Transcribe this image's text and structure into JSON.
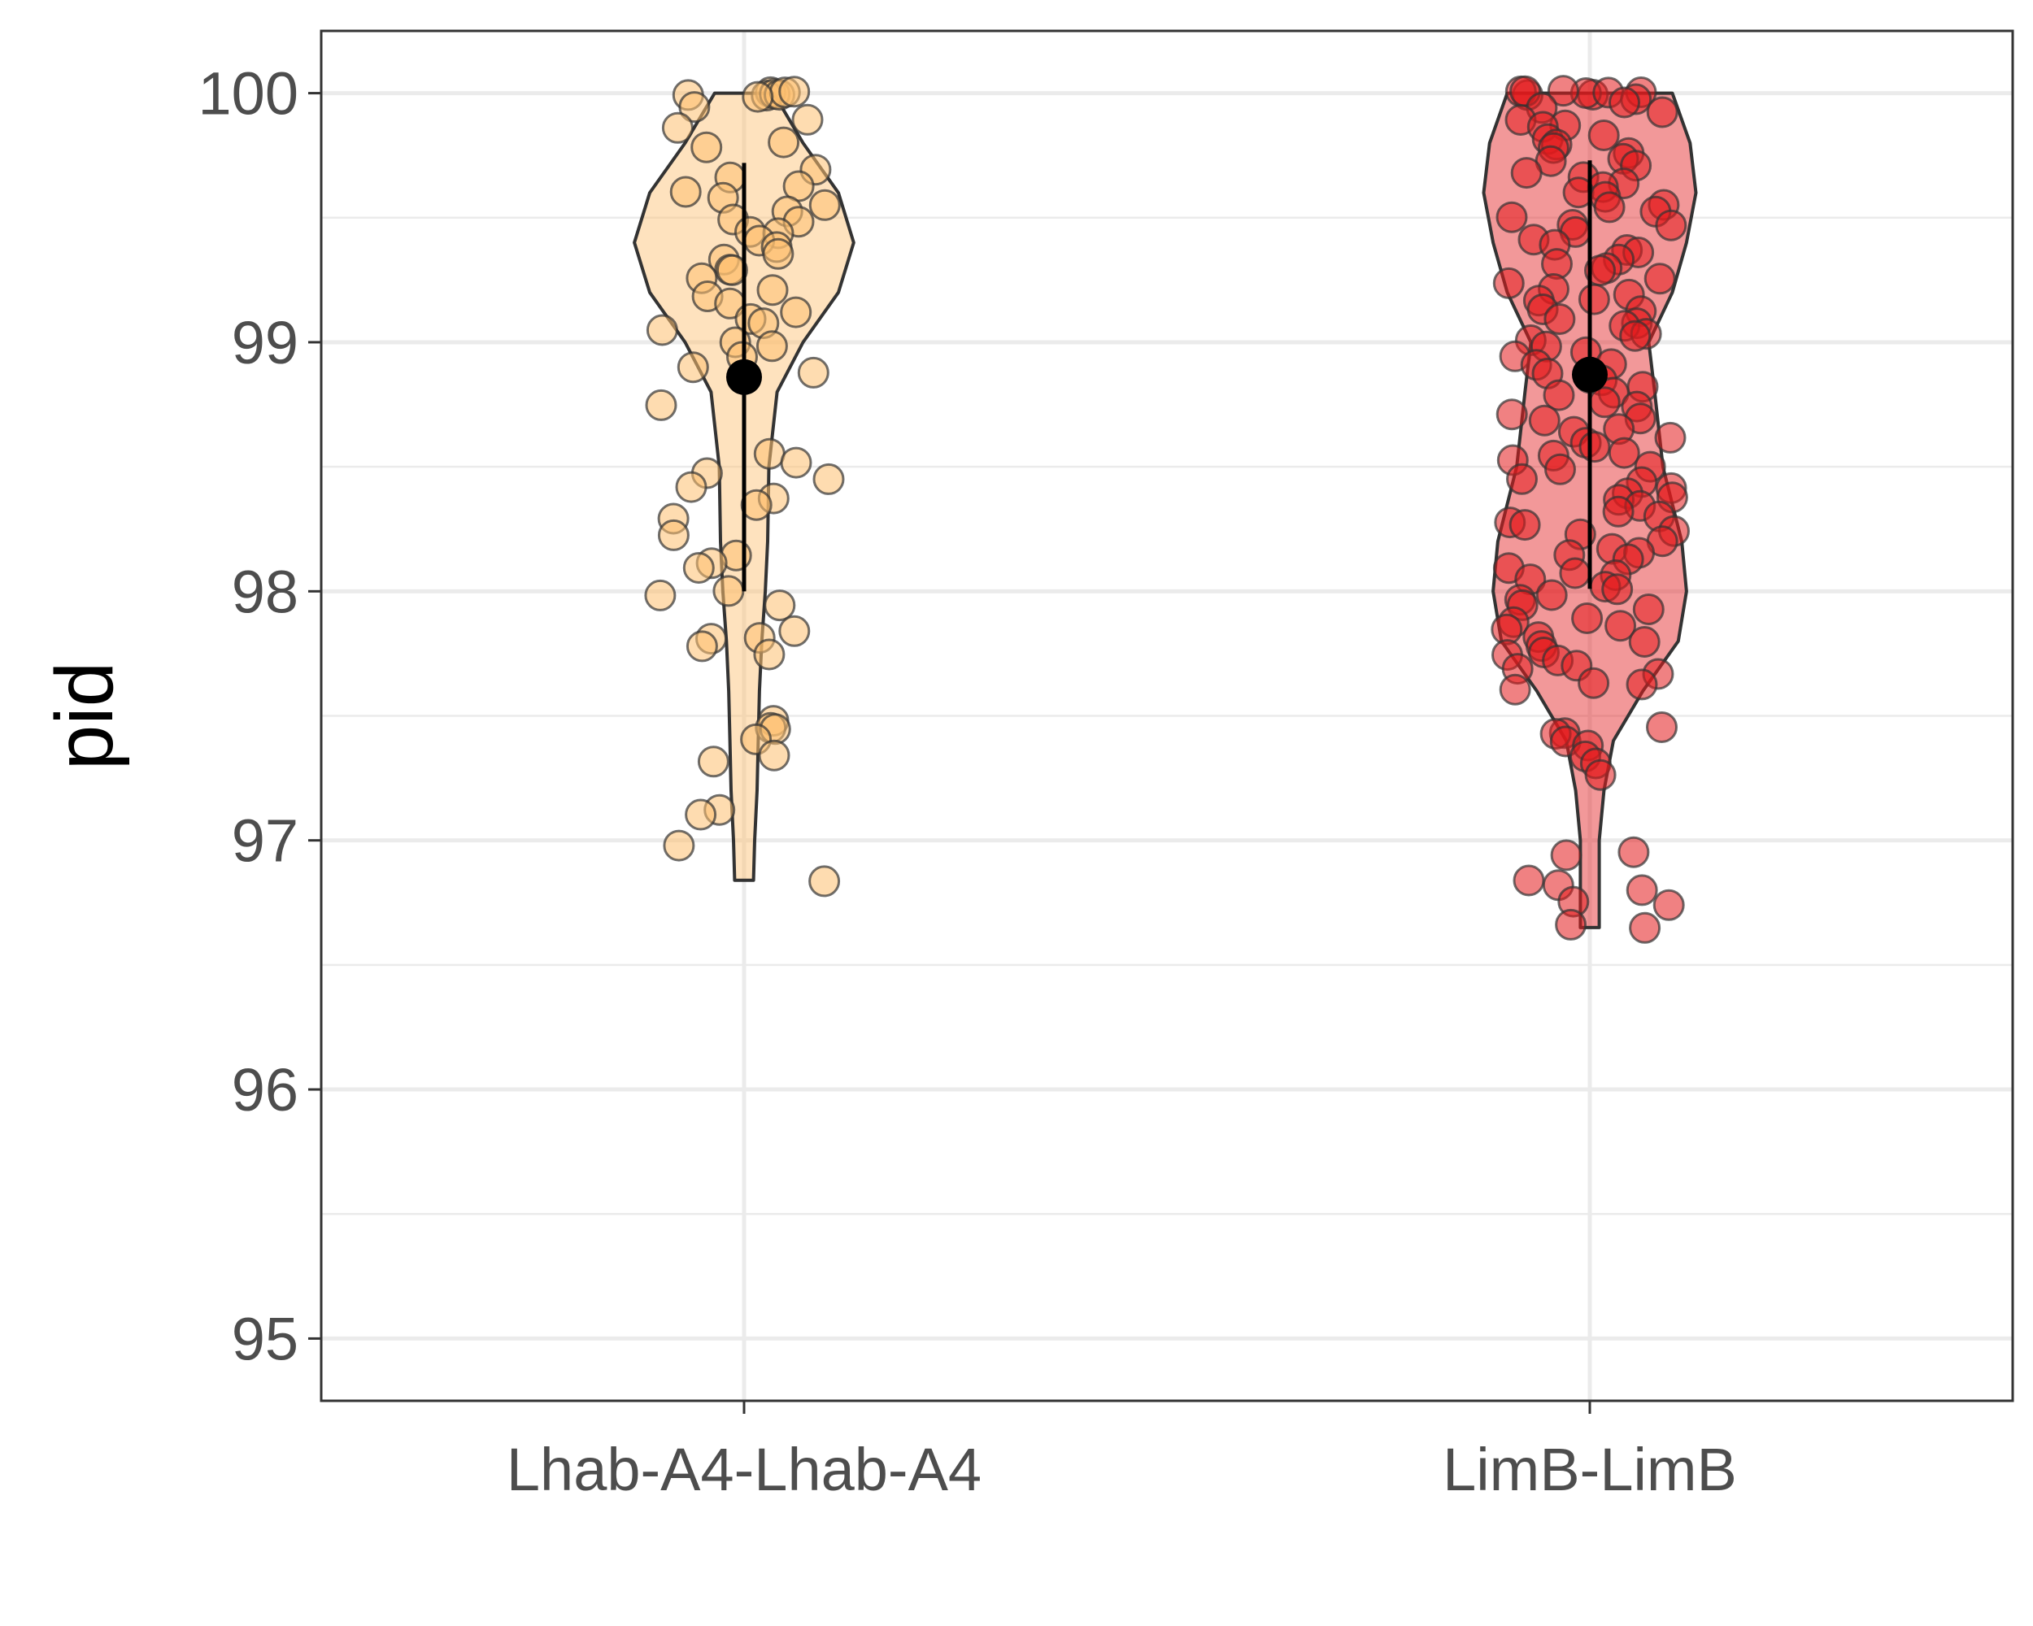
{
  "chart_data": {
    "type": "violin",
    "ylabel": "pid",
    "xlabel": "",
    "ylim": [
      94.75,
      100.25
    ],
    "yticks": [
      95,
      96,
      97,
      98,
      99,
      100
    ],
    "ytick_labels": [
      "95",
      "96",
      "97",
      "98",
      "99",
      "100"
    ],
    "grid": true,
    "categories": [
      "Lhab-A4-Lhab-A4",
      "LimB-LimB"
    ],
    "series": [
      {
        "name": "Lhab-A4-Lhab-A4",
        "fill_color": "#fdbf6f",
        "mean": 98.86,
        "range_low": 98.0,
        "range_high": 99.72,
        "min": 96.84,
        "max": 100.0,
        "violin_profile": [
          [
            96.84,
            0.08
          ],
          [
            97.0,
            0.09
          ],
          [
            97.2,
            0.11
          ],
          [
            97.4,
            0.12
          ],
          [
            97.6,
            0.13
          ],
          [
            97.8,
            0.15
          ],
          [
            98.0,
            0.18
          ],
          [
            98.2,
            0.2
          ],
          [
            98.5,
            0.21
          ],
          [
            98.8,
            0.28
          ],
          [
            99.0,
            0.5
          ],
          [
            99.2,
            0.8
          ],
          [
            99.4,
            0.93
          ],
          [
            99.6,
            0.8
          ],
          [
            99.8,
            0.5
          ],
          [
            100.0,
            0.25
          ]
        ],
        "points": [
          100.0,
          100.0,
          100.0,
          100.0,
          100.0,
          100.0,
          100.0,
          99.98,
          99.95,
          99.9,
          99.86,
          99.8,
          99.78,
          99.7,
          99.66,
          99.62,
          99.6,
          99.58,
          99.55,
          99.52,
          99.5,
          99.48,
          99.45,
          99.43,
          99.4,
          99.38,
          99.35,
          99.33,
          99.3,
          99.28,
          99.25,
          99.2,
          99.18,
          99.15,
          99.12,
          99.1,
          99.08,
          99.05,
          99.0,
          98.98,
          98.95,
          98.9,
          98.88,
          98.75,
          98.55,
          98.52,
          98.48,
          98.45,
          98.42,
          98.38,
          98.35,
          98.3,
          98.22,
          98.15,
          98.12,
          98.1,
          98.0,
          97.98,
          97.95,
          97.85,
          97.82,
          97.8,
          97.78,
          97.75,
          97.48,
          97.46,
          97.44,
          97.4,
          97.34,
          97.32,
          97.12,
          97.1,
          96.98,
          96.84
        ]
      },
      {
        "name": "LimB-LimB",
        "fill_color": "#e31a1c",
        "mean": 98.87,
        "range_low": 98.01,
        "range_high": 99.73,
        "min": 96.65,
        "max": 100.0,
        "violin_profile": [
          [
            96.65,
            0.08
          ],
          [
            96.8,
            0.08
          ],
          [
            97.0,
            0.08
          ],
          [
            97.2,
            0.12
          ],
          [
            97.4,
            0.2
          ],
          [
            97.6,
            0.45
          ],
          [
            97.8,
            0.75
          ],
          [
            98.0,
            0.82
          ],
          [
            98.2,
            0.78
          ],
          [
            98.5,
            0.62
          ],
          [
            98.8,
            0.55
          ],
          [
            99.0,
            0.5
          ],
          [
            99.2,
            0.7
          ],
          [
            99.4,
            0.82
          ],
          [
            99.6,
            0.9
          ],
          [
            99.8,
            0.85
          ],
          [
            100.0,
            0.7
          ]
        ],
        "points": [
          100.0,
          100.0,
          100.0,
          100.0,
          100.0,
          100.0,
          100.0,
          100.0,
          99.98,
          99.96,
          99.94,
          99.92,
          99.9,
          99.88,
          99.86,
          99.84,
          99.82,
          99.8,
          99.78,
          99.76,
          99.74,
          99.72,
          99.7,
          99.68,
          99.66,
          99.64,
          99.62,
          99.6,
          99.58,
          99.56,
          99.54,
          99.52,
          99.5,
          99.48,
          99.46,
          99.44,
          99.42,
          99.4,
          99.38,
          99.36,
          99.34,
          99.32,
          99.3,
          99.28,
          99.26,
          99.24,
          99.22,
          99.2,
          99.18,
          99.16,
          99.14,
          99.12,
          99.1,
          99.08,
          99.06,
          99.04,
          99.02,
          99.0,
          98.98,
          98.96,
          98.94,
          98.92,
          98.9,
          98.88,
          98.86,
          98.84,
          98.82,
          98.8,
          98.78,
          98.76,
          98.74,
          98.72,
          98.7,
          98.68,
          98.66,
          98.64,
          98.62,
          98.6,
          98.58,
          98.56,
          98.54,
          98.52,
          98.5,
          98.48,
          98.46,
          98.44,
          98.42,
          98.4,
          98.38,
          98.36,
          98.34,
          98.32,
          98.3,
          98.28,
          98.26,
          98.24,
          98.22,
          98.2,
          98.18,
          98.16,
          98.14,
          98.12,
          98.1,
          98.08,
          98.06,
          98.04,
          98.02,
          98.0,
          97.98,
          97.96,
          97.94,
          97.92,
          97.9,
          97.88,
          97.86,
          97.84,
          97.82,
          97.8,
          97.78,
          97.76,
          97.74,
          97.72,
          97.7,
          97.68,
          97.66,
          97.64,
          97.62,
          97.6,
          97.46,
          97.44,
          97.42,
          97.4,
          97.38,
          97.34,
          97.3,
          97.27,
          96.96,
          96.94,
          96.84,
          96.82,
          96.8,
          96.76,
          96.74,
          96.66,
          96.65
        ]
      }
    ]
  }
}
